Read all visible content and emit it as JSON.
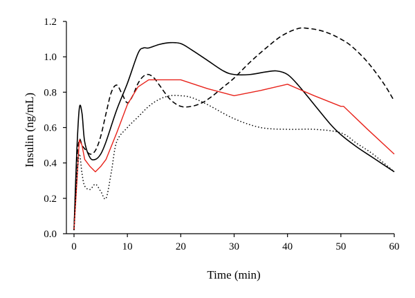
{
  "chart_data": {
    "type": "line",
    "title": "",
    "xlabel": "Time (min)",
    "ylabel": "Insulin (ng/mL)",
    "xlim": [
      0,
      60
    ],
    "ylim": [
      0,
      1.2
    ],
    "x_ticks": [
      0,
      10,
      20,
      30,
      40,
      50,
      60
    ],
    "y_ticks": [
      "0.0",
      "0.2",
      "0.4",
      "0.6",
      "0.8",
      "1.0",
      "1.2"
    ],
    "grid": false,
    "legend": "none",
    "series": [
      {
        "style": "solid",
        "color": "#000000",
        "x": [
          0,
          0.5,
          1,
          1.5,
          2,
          3,
          4,
          5,
          6,
          8,
          10,
          12,
          13,
          14,
          16,
          18,
          20,
          22,
          25,
          28,
          30,
          33,
          36,
          38,
          40,
          42,
          45,
          48,
          50,
          53,
          56,
          60
        ],
        "y": [
          0.02,
          0.45,
          0.71,
          0.68,
          0.52,
          0.43,
          0.42,
          0.45,
          0.52,
          0.7,
          0.85,
          1.02,
          1.05,
          1.05,
          1.07,
          1.08,
          1.075,
          1.04,
          0.98,
          0.92,
          0.9,
          0.9,
          0.915,
          0.92,
          0.9,
          0.84,
          0.73,
          0.62,
          0.56,
          0.49,
          0.43,
          0.35
        ]
      },
      {
        "style": "dashed",
        "color": "#000000",
        "x": [
          0,
          0.5,
          1,
          1.5,
          2,
          3,
          4,
          5,
          6,
          7,
          8,
          9,
          10,
          11,
          12,
          13,
          14,
          15,
          16,
          18,
          20,
          22,
          24,
          26,
          28,
          30,
          33,
          36,
          39,
          42,
          44,
          46,
          48,
          50,
          52,
          55,
          58,
          60
        ],
        "y": [
          0.02,
          0.4,
          0.53,
          0.5,
          0.48,
          0.45,
          0.47,
          0.55,
          0.68,
          0.8,
          0.84,
          0.79,
          0.74,
          0.78,
          0.85,
          0.89,
          0.9,
          0.88,
          0.84,
          0.76,
          0.72,
          0.72,
          0.74,
          0.78,
          0.83,
          0.88,
          0.97,
          1.05,
          1.12,
          1.16,
          1.16,
          1.15,
          1.13,
          1.1,
          1.06,
          0.97,
          0.85,
          0.75
        ]
      },
      {
        "style": "solid",
        "color": "#e8231b",
        "x": [
          0,
          1,
          1.5,
          2,
          3,
          4,
          5,
          6,
          8,
          10,
          12,
          14,
          16,
          18,
          20,
          25,
          30,
          35,
          40,
          45,
          50,
          50.5,
          55,
          60
        ],
        "y": [
          0.02,
          0.53,
          0.5,
          0.42,
          0.38,
          0.35,
          0.38,
          0.42,
          0.57,
          0.73,
          0.83,
          0.87,
          0.87,
          0.87,
          0.87,
          0.82,
          0.78,
          0.81,
          0.845,
          0.78,
          0.72,
          0.72,
          0.59,
          0.45
        ]
      },
      {
        "style": "dotted",
        "color": "#000000",
        "x": [
          0,
          0.5,
          1,
          1.5,
          2,
          3,
          4,
          5,
          6,
          7,
          8,
          10,
          12,
          14,
          16,
          18,
          20,
          22,
          25,
          30,
          35,
          40,
          45,
          50,
          53,
          56,
          60
        ],
        "y": [
          0.02,
          0.3,
          0.45,
          0.34,
          0.27,
          0.25,
          0.28,
          0.24,
          0.2,
          0.35,
          0.52,
          0.6,
          0.66,
          0.72,
          0.76,
          0.78,
          0.78,
          0.77,
          0.73,
          0.65,
          0.6,
          0.59,
          0.59,
          0.57,
          0.51,
          0.45,
          0.35
        ]
      }
    ]
  }
}
